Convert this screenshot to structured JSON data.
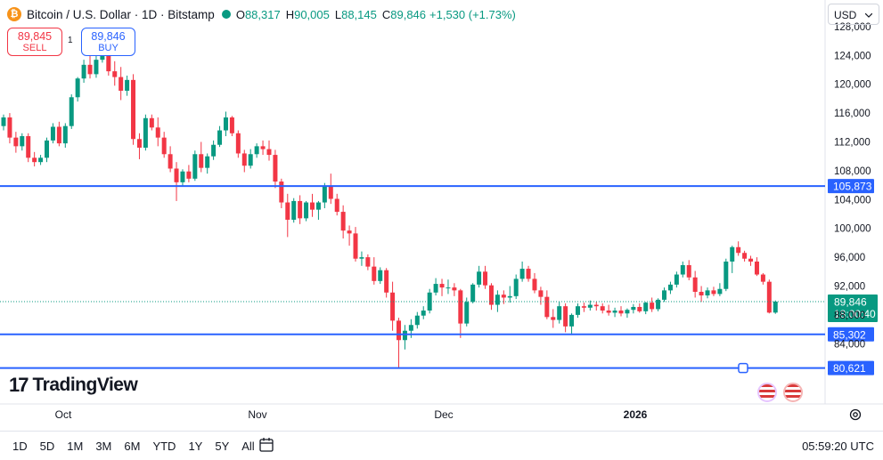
{
  "header": {
    "title": "Bitcoin / U.S. Dollar · 1D · Bitstamp",
    "logo_letter": "₿",
    "o_label": "O",
    "o_value": "88,317",
    "h_label": "H",
    "h_value": "90,005",
    "l_label": "L",
    "l_value": "88,145",
    "c_label": "C",
    "c_value": "89,846",
    "change": "+1,530 (+1.73%)"
  },
  "trade": {
    "sell_price": "89,845",
    "sell_label": "SELL",
    "spread": "1",
    "buy_price": "89,846",
    "buy_label": "BUY"
  },
  "currency": {
    "label": "USD",
    "icon": "chevron-down-icon"
  },
  "brand": {
    "mark": "17",
    "name": "TradingView"
  },
  "bottom": {
    "ranges": [
      "1D",
      "5D",
      "1M",
      "3M",
      "6M",
      "YTD",
      "1Y",
      "5Y",
      "All"
    ],
    "clock": "05:59:20 UTC"
  },
  "colors": {
    "up": "#089981",
    "down": "#f23645",
    "line": "#2962ff"
  },
  "chart_data": {
    "type": "candlestick",
    "y_ticks": [
      84000,
      88000,
      92000,
      96000,
      100000,
      104000,
      108000,
      112000,
      116000,
      120000,
      124000,
      128000
    ],
    "y_tick_labels": [
      "84,000",
      "88,000",
      "92,000",
      "96,000",
      "100,000",
      "104,000",
      "108,000",
      "112,000",
      "116,000",
      "120,000",
      "124,000",
      "128,000"
    ],
    "x_labels": [
      "Oct",
      "Nov",
      "Dec",
      "2026"
    ],
    "last_price": {
      "value": 89846,
      "label": "89,846",
      "countdown": "18:00:40"
    },
    "horizontal_lines": [
      {
        "value": 105873,
        "label": "105,873"
      },
      {
        "value": 85302,
        "label": "85,302"
      },
      {
        "value": 80621,
        "label": "80,621"
      }
    ],
    "candles": [
      [
        114200,
        115800,
        113600,
        115400
      ],
      [
        115400,
        116000,
        111800,
        112600
      ],
      [
        112600,
        113400,
        110500,
        111400
      ],
      [
        111400,
        113200,
        110800,
        112800
      ],
      [
        112800,
        113200,
        109200,
        109800
      ],
      [
        109800,
        110600,
        108600,
        109200
      ],
      [
        109200,
        110200,
        108800,
        109800
      ],
      [
        109800,
        112600,
        109200,
        112200
      ],
      [
        112200,
        114600,
        111800,
        114100
      ],
      [
        114100,
        114800,
        111400,
        111800
      ],
      [
        111800,
        114600,
        111200,
        114200
      ],
      [
        114200,
        118600,
        113800,
        118200
      ],
      [
        118200,
        121000,
        117600,
        120800
      ],
      [
        120800,
        123400,
        120200,
        122700
      ],
      [
        122700,
        124600,
        120800,
        121400
      ],
      [
        121400,
        124200,
        120900,
        123400
      ],
      [
        123400,
        126100,
        123000,
        124900
      ],
      [
        124900,
        125800,
        121200,
        121800
      ],
      [
        121800,
        123200,
        119800,
        121000
      ],
      [
        121000,
        122400,
        117800,
        119100
      ],
      [
        119100,
        121200,
        118400,
        120600
      ],
      [
        120600,
        121400,
        111600,
        112400
      ],
      [
        112400,
        113200,
        109600,
        111200
      ],
      [
        111200,
        115800,
        110800,
        115300
      ],
      [
        115300,
        115800,
        113600,
        114000
      ],
      [
        114000,
        115400,
        111400,
        112600
      ],
      [
        112600,
        113400,
        109800,
        110300
      ],
      [
        110300,
        111400,
        107800,
        108300
      ],
      [
        108300,
        109200,
        103800,
        106400
      ],
      [
        106400,
        108200,
        105800,
        107900
      ],
      [
        107900,
        108800,
        106400,
        106900
      ],
      [
        106900,
        110800,
        106600,
        110300
      ],
      [
        110300,
        112000,
        107800,
        108400
      ],
      [
        108400,
        110400,
        107600,
        110000
      ],
      [
        110000,
        112200,
        109500,
        111600
      ],
      [
        111600,
        114200,
        111300,
        113600
      ],
      [
        113600,
        116200,
        112800,
        115400
      ],
      [
        115400,
        115600,
        112800,
        113200
      ],
      [
        113200,
        113600,
        109800,
        110400
      ],
      [
        110400,
        110900,
        107800,
        108700
      ],
      [
        108700,
        111000,
        108300,
        110300
      ],
      [
        110300,
        111800,
        109800,
        111400
      ],
      [
        111400,
        112200,
        110200,
        111000
      ],
      [
        111000,
        112200,
        109400,
        110200
      ],
      [
        110200,
        110900,
        105600,
        106500
      ],
      [
        106500,
        106900,
        102800,
        103600
      ],
      [
        103600,
        104800,
        98800,
        101200
      ],
      [
        101200,
        104200,
        100800,
        103800
      ],
      [
        103800,
        104600,
        100600,
        101400
      ],
      [
        101400,
        103800,
        101000,
        103600
      ],
      [
        103600,
        104800,
        101600,
        102600
      ],
      [
        102600,
        103800,
        101200,
        103600
      ],
      [
        103600,
        106300,
        102800,
        105800
      ],
      [
        105800,
        107600,
        103400,
        104100
      ],
      [
        104100,
        104800,
        101800,
        102300
      ],
      [
        102300,
        103200,
        98600,
        99700
      ],
      [
        99700,
        100400,
        97600,
        99300
      ],
      [
        99300,
        100200,
        95400,
        95800
      ],
      [
        95800,
        96800,
        94800,
        96000
      ],
      [
        96000,
        96400,
        94200,
        94700
      ],
      [
        94700,
        96000,
        92200,
        92700
      ],
      [
        92700,
        94600,
        92300,
        94200
      ],
      [
        94200,
        94500,
        90400,
        91100
      ],
      [
        91100,
        92600,
        85800,
        87200
      ],
      [
        87200,
        87600,
        80600,
        84500
      ],
      [
        84500,
        86600,
        83200,
        85800
      ],
      [
        85800,
        87400,
        84800,
        86600
      ],
      [
        86600,
        88400,
        86100,
        87900
      ],
      [
        87900,
        89200,
        87400,
        88600
      ],
      [
        88600,
        91600,
        88200,
        91100
      ],
      [
        91100,
        93100,
        90700,
        92300
      ],
      [
        92300,
        93000,
        90600,
        91800
      ],
      [
        91800,
        92900,
        90900,
        91800
      ],
      [
        91800,
        92400,
        90600,
        91400
      ],
      [
        91400,
        91600,
        84800,
        86800
      ],
      [
        86800,
        90400,
        86400,
        89800
      ],
      [
        89800,
        92400,
        89600,
        92200
      ],
      [
        92200,
        94800,
        91800,
        94000
      ],
      [
        94000,
        94800,
        91600,
        92100
      ],
      [
        92100,
        92400,
        88700,
        89400
      ],
      [
        89400,
        91400,
        88400,
        90800
      ],
      [
        90800,
        91400,
        89500,
        90400
      ],
      [
        90400,
        92000,
        89700,
        90600
      ],
      [
        90600,
        93600,
        90200,
        93000
      ],
      [
        93000,
        95400,
        92600,
        94400
      ],
      [
        94400,
        94800,
        92600,
        93000
      ],
      [
        93000,
        93800,
        91000,
        91400
      ],
      [
        91400,
        91900,
        89400,
        90500
      ],
      [
        90500,
        91400,
        87400,
        87700
      ],
      [
        87700,
        88800,
        86200,
        87300
      ],
      [
        87300,
        89800,
        86800,
        89200
      ],
      [
        89200,
        89600,
        85600,
        86400
      ],
      [
        86400,
        88200,
        85200,
        88000
      ],
      [
        88000,
        89600,
        87600,
        89200
      ],
      [
        89200,
        89700,
        88400,
        89000
      ],
      [
        89000,
        90000,
        88600,
        89400
      ],
      [
        89400,
        89800,
        88600,
        89200
      ],
      [
        89200,
        89600,
        88200,
        88600
      ],
      [
        88600,
        89400,
        87900,
        88300
      ],
      [
        88300,
        89000,
        87700,
        88600
      ],
      [
        88600,
        89200,
        87800,
        88200
      ],
      [
        88200,
        88900,
        87600,
        88700
      ],
      [
        88700,
        89500,
        88200,
        89100
      ],
      [
        89100,
        89600,
        88300,
        88500
      ],
      [
        88500,
        89800,
        88100,
        89700
      ],
      [
        89700,
        90400,
        88400,
        88800
      ],
      [
        88800,
        90300,
        88500,
        90100
      ],
      [
        90100,
        91800,
        89800,
        91400
      ],
      [
        91400,
        92600,
        90900,
        92200
      ],
      [
        92200,
        94000,
        91800,
        93600
      ],
      [
        93600,
        95400,
        93200,
        94900
      ],
      [
        94900,
        95600,
        92800,
        93200
      ],
      [
        93200,
        94100,
        90400,
        91200
      ],
      [
        91200,
        92000,
        89800,
        90700
      ],
      [
        90700,
        91800,
        90300,
        91400
      ],
      [
        91400,
        91900,
        90600,
        90900
      ],
      [
        90900,
        92400,
        90600,
        91600
      ],
      [
        91600,
        95800,
        91300,
        95400
      ],
      [
        95400,
        97600,
        93800,
        97400
      ],
      [
        97400,
        98200,
        96200,
        96600
      ],
      [
        96600,
        96900,
        95400,
        95800
      ],
      [
        95800,
        96200,
        94800,
        95400
      ],
      [
        95400,
        96000,
        93400,
        93600
      ],
      [
        93600,
        93800,
        92200,
        92600
      ],
      [
        92600,
        92900,
        88200,
        88317
      ],
      [
        88317,
        90005,
        88145,
        89846
      ]
    ]
  }
}
